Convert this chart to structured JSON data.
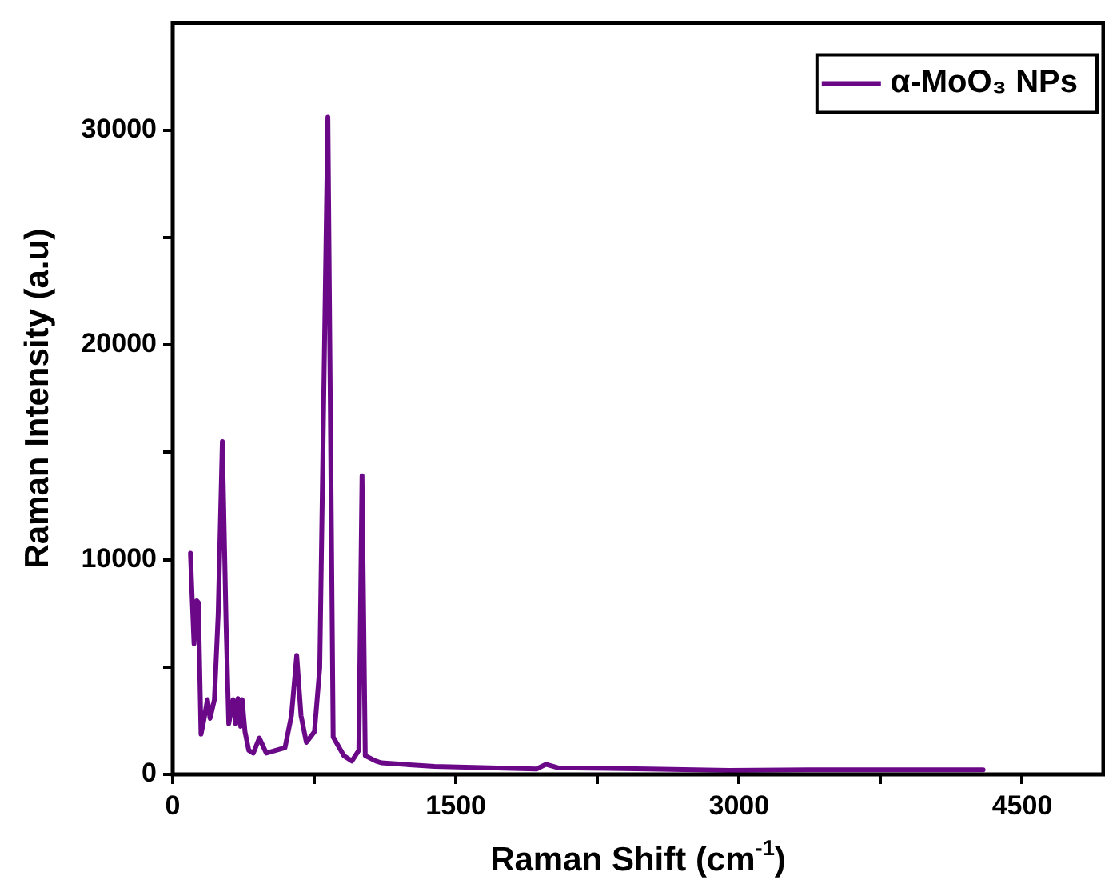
{
  "chart_data": {
    "type": "line",
    "xlabel": "Raman Shift (cm$^{-1}$)",
    "ylabel": "Raman Intensity (a.u)",
    "x": [
      94,
      102,
      113,
      128,
      136,
      150,
      164,
      184,
      198,
      221,
      241,
      263,
      283,
      297,
      320,
      334,
      346,
      360,
      368,
      383,
      403,
      427,
      459,
      496,
      595,
      629,
      657,
      680,
      708,
      751,
      779,
      822,
      850,
      907,
      949,
      986,
      1003,
      1020,
      1077,
      1105,
      1386,
      1927,
      1977,
      2040,
      2522,
      2947,
      3372,
      4293
    ],
    "series": [
      {
        "name": "α-MoO₃ NPs",
        "color": "#6a0888",
        "values": [
          10300,
          8450,
          6090,
          8080,
          8000,
          1870,
          2480,
          3480,
          2610,
          3480,
          7460,
          15500,
          6960,
          2360,
          3480,
          2360,
          3530,
          2240,
          3480,
          1990,
          1120,
          990,
          1690,
          990,
          1240,
          2730,
          5540,
          2730,
          1490,
          1990,
          4970,
          30600,
          1740,
          870,
          620,
          1120,
          13900,
          870,
          620,
          540,
          370,
          250,
          470,
          310,
          250,
          190,
          210,
          210
        ]
      }
    ],
    "xlim": [
      0,
      4930
    ],
    "ylim": [
      0,
      35000
    ],
    "xticks": [
      0,
      {
        "value": 750,
        "label": null
      },
      1500,
      {
        "value": 2250,
        "label": null
      },
      3000,
      {
        "value": 3750,
        "label": null
      },
      4500
    ],
    "yticks": [
      0,
      {
        "value": 5000,
        "label": null
      },
      10000,
      {
        "value": 15000,
        "label": null
      },
      20000,
      {
        "value": 25000,
        "label": null
      },
      30000
    ],
    "grid": false,
    "legend": "top right",
    "marker": "none",
    "line_style": "solid"
  }
}
